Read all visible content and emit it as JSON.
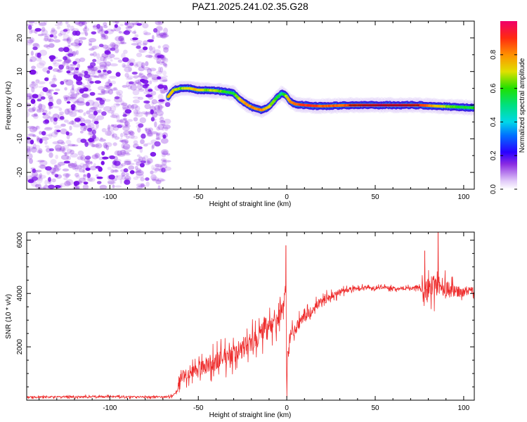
{
  "title": "PAZ1.2025.241.02.35.G28",
  "colors": {
    "snr_line": "#ee2a2a",
    "spectrum_noise": "#8a2be2",
    "axis": "#000000"
  },
  "chart_data": [
    {
      "type": "heatmap",
      "name": "spectrogram",
      "xlabel": "Height of straight line (km)",
      "ylabel": "Frequency (Hz)",
      "xlim": [
        -147,
        106
      ],
      "ylim": [
        -25,
        25
      ],
      "xticks": [
        -100,
        -50,
        0,
        50,
        100
      ],
      "xtick_labels": [
        "-100",
        "-50",
        "0",
        "50",
        "100"
      ],
      "yticks": [
        -20,
        -10,
        0,
        10,
        20
      ],
      "ytick_labels": [
        "-20",
        "-10",
        "0",
        "10",
        "20"
      ],
      "noise_region_x": [
        -147,
        -67
      ],
      "ridge": {
        "x": [
          -67,
          -64,
          -60,
          -55,
          -50,
          -45,
          -40,
          -35,
          -30,
          -26,
          -22,
          -18,
          -14,
          -10,
          -6,
          -3,
          -1,
          0,
          2,
          5,
          10,
          15,
          20,
          30,
          40,
          50,
          60,
          75,
          85,
          95,
          106
        ],
        "freq": [
          2.5,
          4.5,
          5.0,
          5.0,
          4.5,
          4.5,
          4.3,
          4.0,
          3.5,
          1.5,
          0.0,
          -1.0,
          -1.5,
          -0.5,
          2.0,
          3.5,
          3.0,
          2.5,
          1.0,
          0.3,
          0.0,
          -0.2,
          -0.3,
          -0.1,
          0.0,
          0.0,
          0.0,
          0.0,
          -0.3,
          -0.5,
          -0.8
        ],
        "amplitude": [
          0.75,
          0.7,
          0.65,
          0.7,
          0.75,
          0.65,
          0.7,
          0.6,
          0.55,
          0.75,
          0.8,
          0.8,
          0.8,
          0.7,
          0.6,
          0.5,
          0.6,
          0.7,
          0.8,
          0.85,
          0.9,
          0.9,
          0.85,
          0.85,
          0.9,
          0.95,
          0.95,
          0.9,
          0.75,
          0.6,
          0.55
        ]
      },
      "colorbar": {
        "label": "Normalized spectral amplitude",
        "range": [
          0,
          1
        ],
        "ticks": [
          0.0,
          0.2,
          0.4,
          0.6,
          0.8
        ],
        "tick_labels": [
          "0.0",
          "0.2",
          "0.4",
          "0.6",
          "0.8"
        ]
      }
    },
    {
      "type": "line",
      "name": "snr",
      "xlabel": "Height of straight line (km)",
      "ylabel": "SNR (10 * v/v)",
      "xlim": [
        -147,
        106
      ],
      "ylim": [
        0,
        6300
      ],
      "xticks": [
        -100,
        -50,
        0,
        50,
        100
      ],
      "xtick_labels": [
        "-100",
        "-50",
        "0",
        "50",
        "100"
      ],
      "yticks": [
        2000,
        4000,
        6000
      ],
      "ytick_labels": [
        "2000",
        "4000",
        "6000"
      ],
      "series": [
        {
          "name": "SNR",
          "x": [
            -147,
            -100,
            -70,
            -65,
            -62,
            -60,
            -55,
            -50,
            -45,
            -40,
            -35,
            -30,
            -25,
            -20,
            -15,
            -10,
            -5,
            -2,
            -0.5,
            0,
            0.5,
            2,
            5,
            10,
            15,
            20,
            25,
            30,
            35,
            40,
            50,
            60,
            70,
            75,
            80,
            85,
            90,
            95,
            100,
            106
          ],
          "values": [
            120,
            130,
            120,
            150,
            350,
            900,
            1050,
            1150,
            1350,
            1450,
            1600,
            1750,
            1950,
            2200,
            2450,
            2650,
            3000,
            3500,
            4300,
            100,
            2000,
            2400,
            2700,
            3100,
            3400,
            3700,
            3900,
            4050,
            4150,
            4200,
            4220,
            4200,
            4200,
            4250,
            4100,
            4300,
            4150,
            4100,
            4050,
            4100
          ],
          "noise": [
            70,
            80,
            70,
            80,
            120,
            550,
            600,
            650,
            700,
            750,
            800,
            800,
            850,
            900,
            900,
            850,
            700,
            600,
            300,
            50,
            500,
            500,
            500,
            450,
            400,
            350,
            300,
            260,
            200,
            160,
            130,
            140,
            170,
            200,
            1100,
            900,
            800,
            450,
            400,
            300
          ]
        }
      ],
      "spikes": [
        {
          "x": -0.5,
          "value": 5800
        },
        {
          "x": 0.0,
          "value": 100
        },
        {
          "x": 78,
          "value": 5600
        },
        {
          "x": 85.5,
          "value": 6300
        }
      ]
    }
  ]
}
